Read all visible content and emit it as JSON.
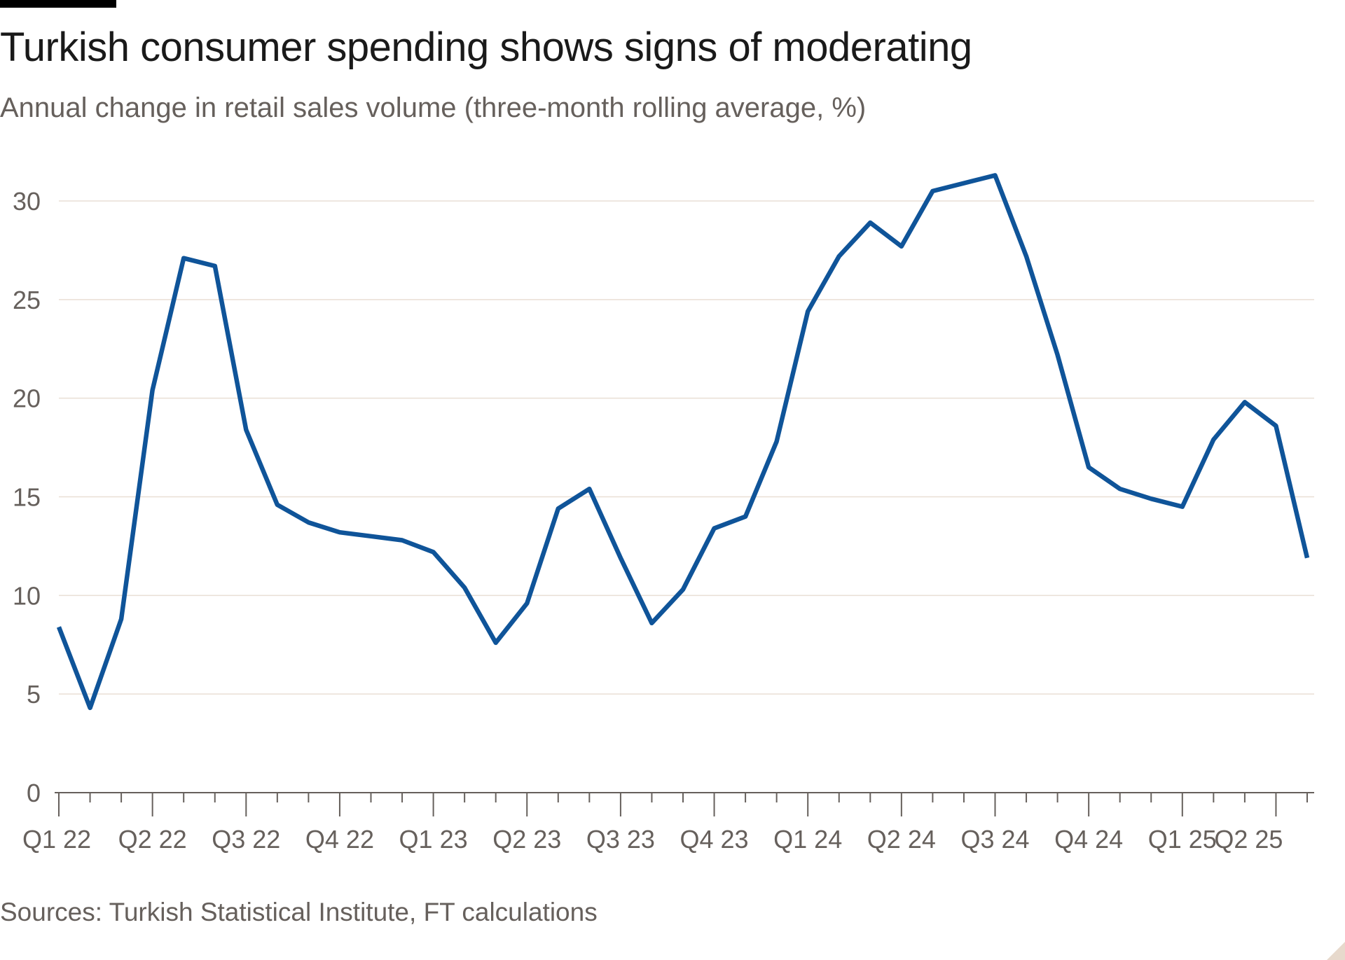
{
  "header": {
    "title": "Turkish consumer spending shows signs of moderating",
    "subtitle": "Annual change in retail sales volume (three-month rolling average, %)"
  },
  "footer": {
    "source": "Sources: Turkish Statistical Institute, FT calculations"
  },
  "colors": {
    "line": "#0f5499",
    "grid": "#e9dfd5",
    "axis": "#66605c",
    "tick_text": "#66605c",
    "rule": "#000000"
  },
  "chart_data": {
    "type": "line",
    "title": "Turkish consumer spending shows signs of moderating",
    "subtitle": "Annual change in retail sales volume (three-month rolling average, %)",
    "x": [
      "Jan 2022",
      "Feb 2022",
      "Mar 2022",
      "Apr 2022",
      "May 2022",
      "Jun 2022",
      "Jul 2022",
      "Aug 2022",
      "Sep 2022",
      "Oct 2022",
      "Nov 2022",
      "Dec 2022",
      "Jan 2023",
      "Feb 2023",
      "Mar 2023",
      "Apr 2023",
      "May 2023",
      "Jun 2023",
      "Jul 2023",
      "Aug 2023",
      "Sep 2023",
      "Oct 2023",
      "Nov 2023",
      "Dec 2023",
      "Jan 2024",
      "Feb 2024",
      "Mar 2024",
      "Apr 2024",
      "May 2024",
      "Jun 2024",
      "Jul 2024",
      "Aug 2024",
      "Sep 2024",
      "Oct 2024",
      "Nov 2024",
      "Dec 2024",
      "Jan 2025",
      "Feb 2025",
      "Mar 2025",
      "Apr 2025",
      "May 2025"
    ],
    "series": [
      {
        "values": [
          8.4,
          4.3,
          8.8,
          20.4,
          27.1,
          26.7,
          18.4,
          14.6,
          13.7,
          13.2,
          13.0,
          12.8,
          12.2,
          10.4,
          7.6,
          9.6,
          14.4,
          15.4,
          11.9,
          8.6,
          10.3,
          13.4,
          14.0,
          17.8,
          24.4,
          27.2,
          28.9,
          27.7,
          30.5,
          30.9,
          31.3,
          27.2,
          22.2,
          16.5,
          15.4,
          14.9,
          14.5,
          17.9,
          19.8,
          18.6,
          11.9
        ]
      }
    ],
    "xticks": [
      "Q1 22",
      "Q2 22",
      "Q3 22",
      "Q4 22",
      "Q1 23",
      "Q2 23",
      "Q3 23",
      "Q4 23",
      "Q1 24",
      "Q2 24",
      "Q3 24",
      "Q4 24",
      "Q1 25",
      "Q2 25"
    ],
    "yticks": [
      0,
      5,
      10,
      15,
      20,
      25,
      30
    ],
    "ylim": [
      0,
      32
    ],
    "grid": "horizontal",
    "legend": "none"
  }
}
